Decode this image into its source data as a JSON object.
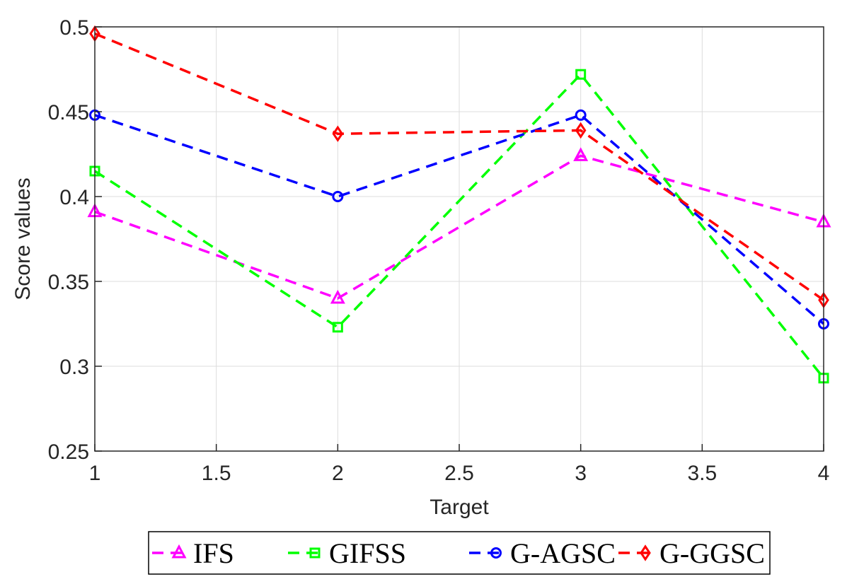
{
  "chart_data": {
    "type": "line",
    "title": "",
    "xlabel": "Target",
    "ylabel": "Score values",
    "xlim": [
      1,
      4
    ],
    "ylim": [
      0.25,
      0.5
    ],
    "xticks": [
      1,
      1.5,
      2,
      2.5,
      3,
      3.5,
      4
    ],
    "xtick_labels": [
      "1",
      "1.5",
      "2",
      "2.5",
      "3",
      "3.5",
      "4"
    ],
    "yticks": [
      0.25,
      0.3,
      0.35,
      0.4,
      0.45,
      0.5
    ],
    "ytick_labels": [
      "0.25",
      "0.3",
      "0.35",
      "0.4",
      "0.45",
      "0.5"
    ],
    "grid": true,
    "legend_position": "bottom-outside",
    "x": [
      1,
      2,
      3,
      4
    ],
    "series": [
      {
        "name": "IFS",
        "values": [
          0.391,
          0.34,
          0.424,
          0.385
        ],
        "color": "#ff00ff",
        "marker": "triangle"
      },
      {
        "name": "GIFSS",
        "values": [
          0.415,
          0.323,
          0.472,
          0.293
        ],
        "color": "#00ff00",
        "marker": "square"
      },
      {
        "name": "G-AGSC",
        "values": [
          0.448,
          0.4,
          0.448,
          0.325
        ],
        "color": "#0000ff",
        "marker": "circle"
      },
      {
        "name": "G-GGSC",
        "values": [
          0.496,
          0.437,
          0.439,
          0.339
        ],
        "color": "#ff0000",
        "marker": "diamond"
      }
    ]
  }
}
